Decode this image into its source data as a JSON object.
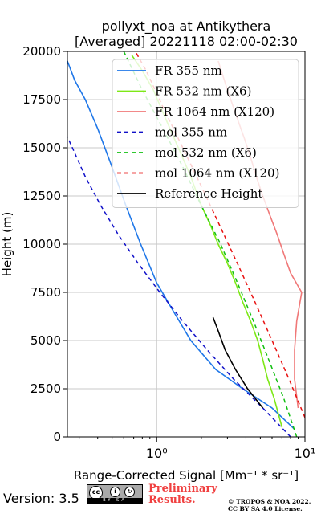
{
  "chart_data": {
    "type": "line",
    "title": "pollyxt_noa at Antikythera",
    "subtitle": "[Averaged] 20221118 02:00-02:30",
    "xlabel": "Range-Corrected Signal [Mm⁻¹ * sr⁻¹]",
    "ylabel": "Height (m)",
    "xscale": "log",
    "xlim": [
      0.25,
      10
    ],
    "ylim": [
      0,
      20000
    ],
    "xticks": [
      {
        "value": 1,
        "label": "10⁰"
      },
      {
        "value": 10,
        "label": "10¹"
      }
    ],
    "yticks": [
      0,
      2500,
      5000,
      7500,
      10000,
      12500,
      15000,
      17500,
      20000
    ],
    "ytick_labels": [
      "0",
      "2500",
      "5000",
      "7500",
      "10000",
      "12500",
      "15000",
      "17500",
      "20000"
    ],
    "grid": true,
    "legend_position": "top-right",
    "series": [
      {
        "name": "FR 355 nm",
        "color": "#1f77e8",
        "style": "solid",
        "x": [
          8.5,
          6.0,
          3.8,
          2.5,
          1.7,
          1.3,
          1.0,
          0.78,
          0.62,
          0.5,
          0.4,
          0.33,
          0.28,
          0.25
        ],
        "y": [
          400,
          1500,
          2500,
          3500,
          5000,
          6500,
          8000,
          10000,
          12000,
          14000,
          16000,
          17500,
          18500,
          19500
        ]
      },
      {
        "name": "FR 532 nm (X6)",
        "color": "#7ee817",
        "style": "solid",
        "x": [
          7.0,
          6.2,
          5.6,
          5.2,
          4.8,
          4.3,
          3.8,
          3.4,
          3.0,
          2.6,
          2.3,
          2.0,
          1.7,
          1.4,
          1.15,
          0.95,
          0.8,
          0.68
        ],
        "y": [
          500,
          2000,
          3000,
          4000,
          5000,
          6000,
          7000,
          8000,
          9000,
          10000,
          11000,
          12000,
          13500,
          15000,
          16500,
          18000,
          19000,
          19800
        ]
      },
      {
        "name": "FR 1064 nm (X120)",
        "color": "#f07878",
        "style": "solid",
        "x": [
          9.0,
          8.5,
          8.5,
          8.8,
          9.5,
          8.0,
          7.2,
          6.5,
          5.8,
          5.2,
          4.7,
          4.3,
          3.9,
          3.5,
          3.0,
          2.6
        ],
        "y": [
          1500,
          3000,
          4500,
          6000,
          7500,
          8500,
          9500,
          10500,
          11500,
          12500,
          13500,
          14500,
          15500,
          16500,
          18000,
          19500
        ]
      },
      {
        "name": "mol 355 nm",
        "color": "#1010c8",
        "style": "dashed",
        "x": [
          8.0,
          5.2,
          3.3,
          2.2,
          1.5,
          1.05,
          0.75,
          0.55,
          0.42,
          0.33,
          0.27,
          0.22
        ],
        "y": [
          0,
          1500,
          3000,
          4500,
          6000,
          7500,
          9000,
          10500,
          12000,
          13500,
          15000,
          16500
        ]
      },
      {
        "name": "mol 532 nm (X6)",
        "color": "#12c012",
        "style": "dashed",
        "x": [
          8.8,
          7.2,
          5.7,
          4.5,
          3.5,
          2.7,
          2.0,
          1.5,
          1.1,
          0.8,
          0.6
        ],
        "y": [
          0,
          2000,
          4000,
          6000,
          8000,
          10000,
          12000,
          14000,
          16000,
          18000,
          20000
        ]
      },
      {
        "name": "mol 1064 nm (X120)",
        "color": "#e81010",
        "style": "dashed",
        "x": [
          10.0,
          7.8,
          6.0,
          4.6,
          3.5,
          2.65,
          2.0,
          1.5,
          1.12,
          0.85,
          0.66
        ],
        "y": [
          1000,
          3000,
          5000,
          7000,
          9000,
          11000,
          13000,
          15000,
          17000,
          19000,
          20500
        ]
      },
      {
        "name": "Reference Height",
        "color": "#000000",
        "style": "solid",
        "x": [
          5.2,
          4.1,
          3.4,
          2.9,
          2.6,
          2.4
        ],
        "y": [
          1500,
          2500,
          3500,
          4500,
          5500,
          6200
        ]
      }
    ]
  },
  "footer": {
    "version": "Version: 3.5",
    "license_badge_text": "BY SA",
    "preliminary_line1": "Preliminary",
    "preliminary_line2": "Results.",
    "copyright_line1": "© TROPOS & NOA 2022.",
    "copyright_line2": "CC BY SA 4.0 License."
  }
}
